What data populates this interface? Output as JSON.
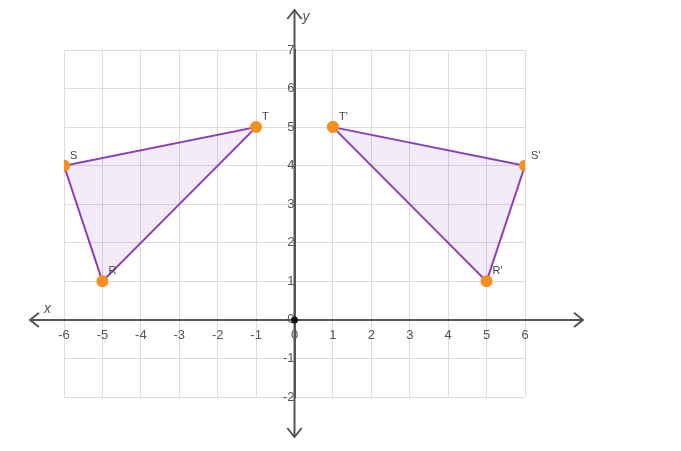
{
  "chart_data": {
    "type": "polygon",
    "x_axis_label": "x",
    "y_axis_label": "y",
    "xlim": [
      -6,
      6
    ],
    "ylim": [
      -2,
      7
    ],
    "xticks": [
      -6,
      -5,
      -4,
      -3,
      -2,
      -1,
      0,
      1,
      2,
      3,
      4,
      5,
      6
    ],
    "yticks": [
      -2,
      -1,
      0,
      1,
      2,
      3,
      4,
      5,
      6,
      7
    ],
    "grid": true,
    "shapes": [
      {
        "color": "#8e3fb8",
        "points": [
          {
            "label": "S",
            "x": -6,
            "y": 4
          },
          {
            "label": "T",
            "x": -1,
            "y": 5
          },
          {
            "label": "R",
            "x": -5,
            "y": 1
          }
        ]
      },
      {
        "color": "#8e3fb8",
        "points": [
          {
            "label": "T'",
            "x": 1,
            "y": 5
          },
          {
            "label": "S'",
            "x": 6,
            "y": 4
          },
          {
            "label": "R'",
            "x": 5,
            "y": 1
          }
        ]
      }
    ]
  }
}
